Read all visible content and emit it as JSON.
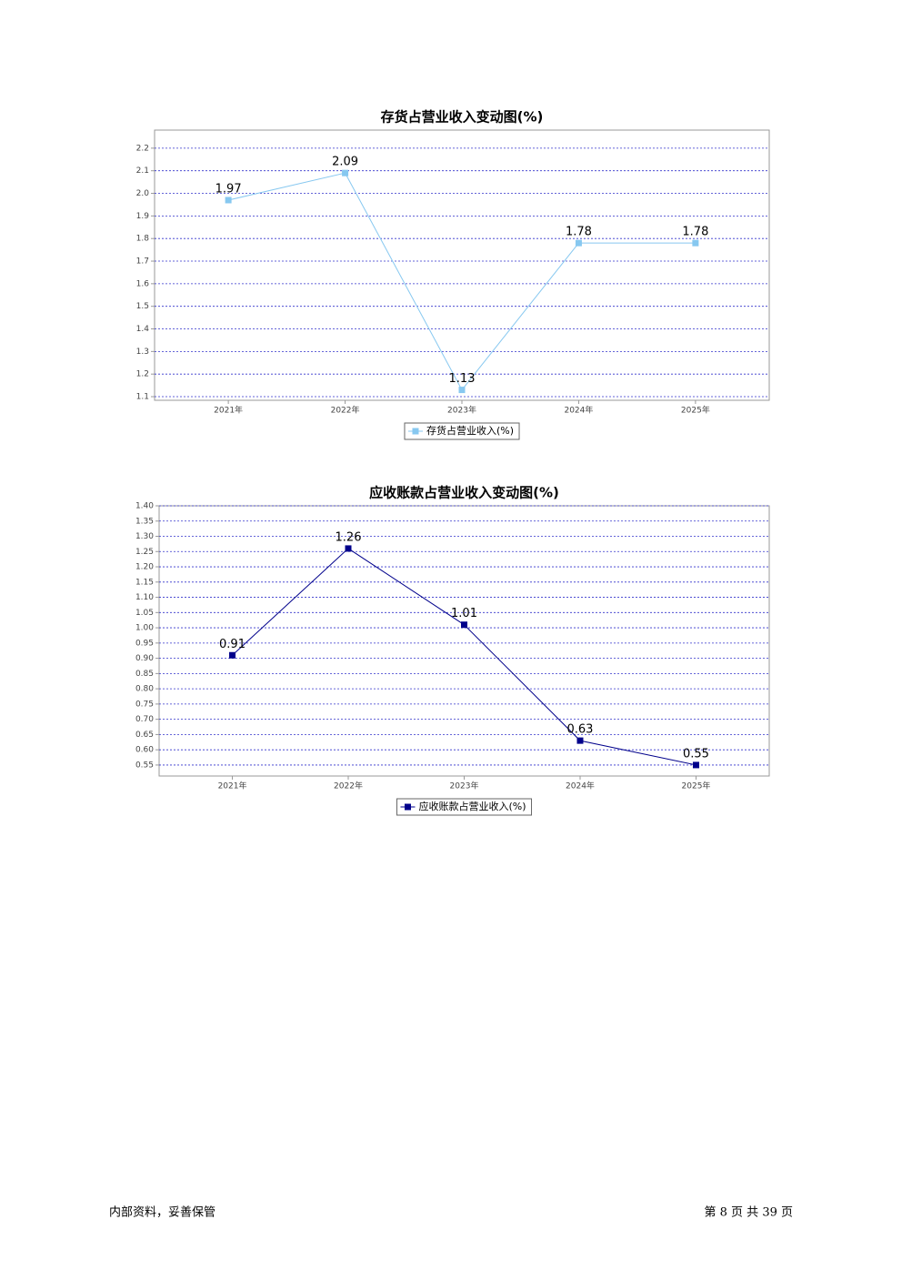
{
  "chart_data": [
    {
      "type": "line",
      "title": "存货占营业收入变动图(%)",
      "categories": [
        "2021年",
        "2022年",
        "2023年",
        "2024年",
        "2025年"
      ],
      "series": [
        {
          "name": "存货占营业收入(%)",
          "color": "#87c8f0",
          "values": [
            1.97,
            2.09,
            1.13,
            1.78,
            1.78
          ]
        }
      ],
      "ylim": [
        1.084,
        2.28
      ],
      "yticks": [
        1.1,
        1.2,
        1.3,
        1.4,
        1.5,
        1.6,
        1.7,
        1.8,
        1.9,
        {
          "value": 2.0,
          "label": "2.0"
        },
        2.1,
        2.2
      ],
      "grid": true
    },
    {
      "type": "line",
      "title": "应收账款占营业收入变动图(%)",
      "categories": [
        "2021年",
        "2022年",
        "2023年",
        "2024年",
        "2025年"
      ],
      "series": [
        {
          "name": "应收账款占营业收入(%)",
          "color": "#00008b",
          "values": [
            0.91,
            1.26,
            1.01,
            0.63,
            0.55
          ]
        }
      ],
      "ylim": [
        0.514,
        1.4
      ],
      "yticks": [
        0.55,
        {
          "value": 0.6,
          "label": "0.60"
        },
        0.65,
        {
          "value": 0.7,
          "label": "0.70"
        },
        0.75,
        {
          "value": 0.8,
          "label": "0.80"
        },
        0.85,
        {
          "value": 0.9,
          "label": "0.90"
        },
        0.95,
        {
          "value": 1.0,
          "label": "1.00"
        },
        1.05,
        {
          "value": 1.1,
          "label": "1.10"
        },
        1.15,
        {
          "value": 1.2,
          "label": "1.20"
        },
        1.25,
        {
          "value": 1.3,
          "label": "1.30"
        },
        1.35,
        {
          "value": 1.4,
          "label": "1.40"
        }
      ],
      "grid": true
    }
  ],
  "footer": {
    "left": "内部资料，妥善保管",
    "right": "第 8 页 共 39 页"
  }
}
